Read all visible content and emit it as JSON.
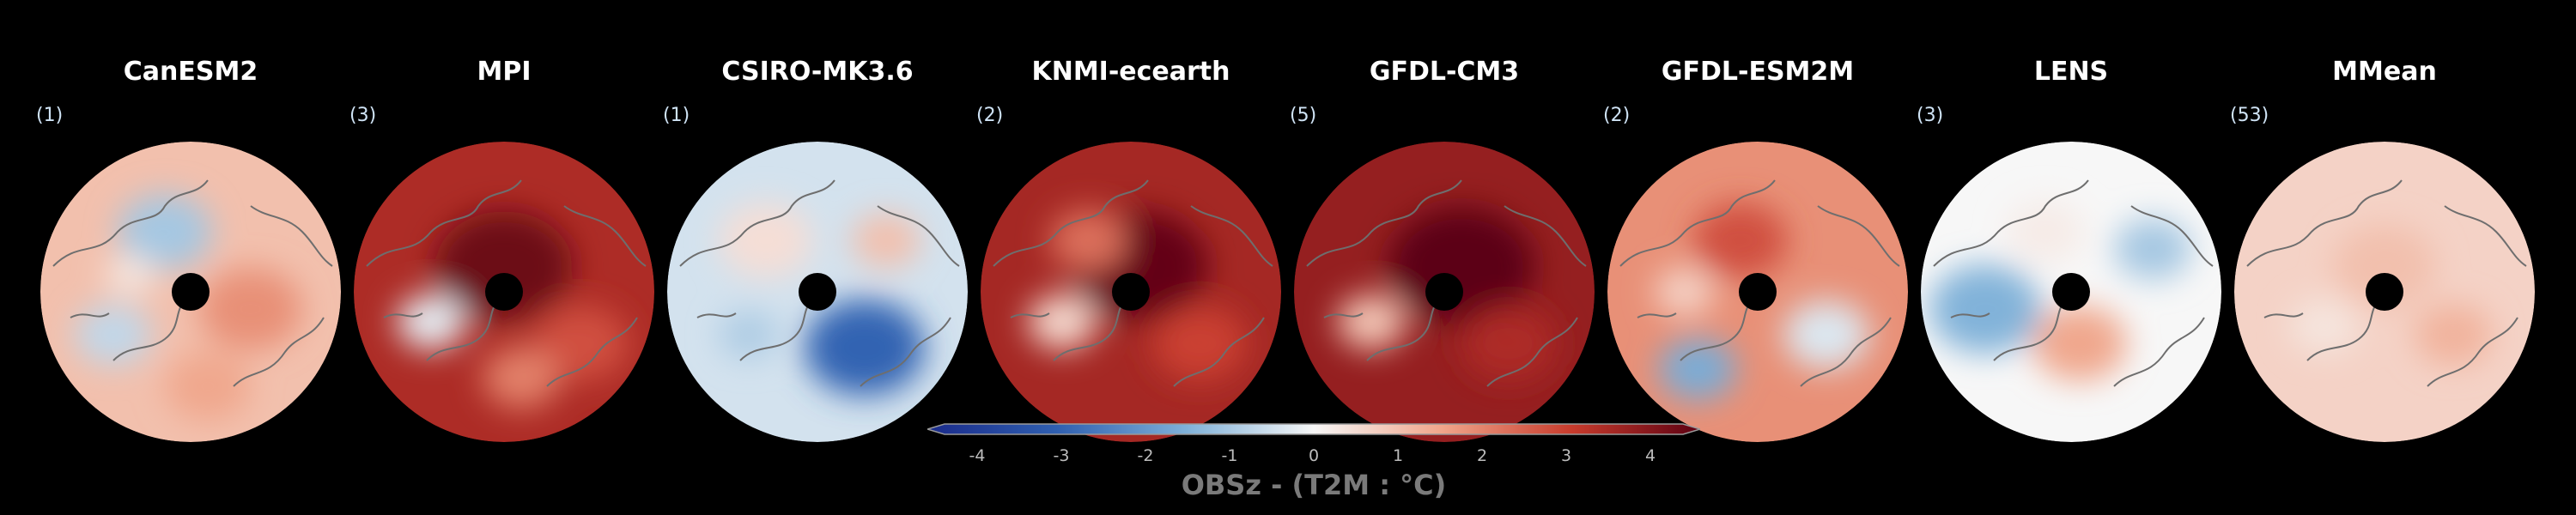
{
  "colors": {
    "background": "#000000",
    "title": "#ffffff",
    "count": "#cfe3f5",
    "coastline": "#6e6e6e",
    "pole_hole": "#000000"
  },
  "panels": [
    {
      "title": "CanESM2",
      "count": "(1)",
      "mean_anomaly": 0.9
    },
    {
      "title": "MPI",
      "count": "(3)",
      "mean_anomaly": 3.0
    },
    {
      "title": "CSIRO-MK3.6",
      "count": "(1)",
      "mean_anomaly": -0.4
    },
    {
      "title": "KNMI-ecearth",
      "count": "(2)",
      "mean_anomaly": 3.1
    },
    {
      "title": "GFDL-CM3",
      "count": "(5)",
      "mean_anomaly": 3.3
    },
    {
      "title": "GFDL-ESM2M",
      "count": "(2)",
      "mean_anomaly": 1.6
    },
    {
      "title": "LENS",
      "count": "(3)",
      "mean_anomaly": 0.0
    },
    {
      "title": "MMean",
      "count": "(53)",
      "mean_anomaly": 0.6
    }
  ],
  "colorbar": {
    "label": "OBSz - (T2M : °C)",
    "min": -4,
    "max": 4,
    "ticks": [
      "-4",
      "-3",
      "-2",
      "-1",
      "0",
      "1",
      "2",
      "3",
      "4"
    ],
    "colormap": [
      "#1a2a8a",
      "#2f5fb0",
      "#7eb0d8",
      "#f7f7f7",
      "#f0a58a",
      "#c83b2c",
      "#5c0012"
    ]
  }
}
